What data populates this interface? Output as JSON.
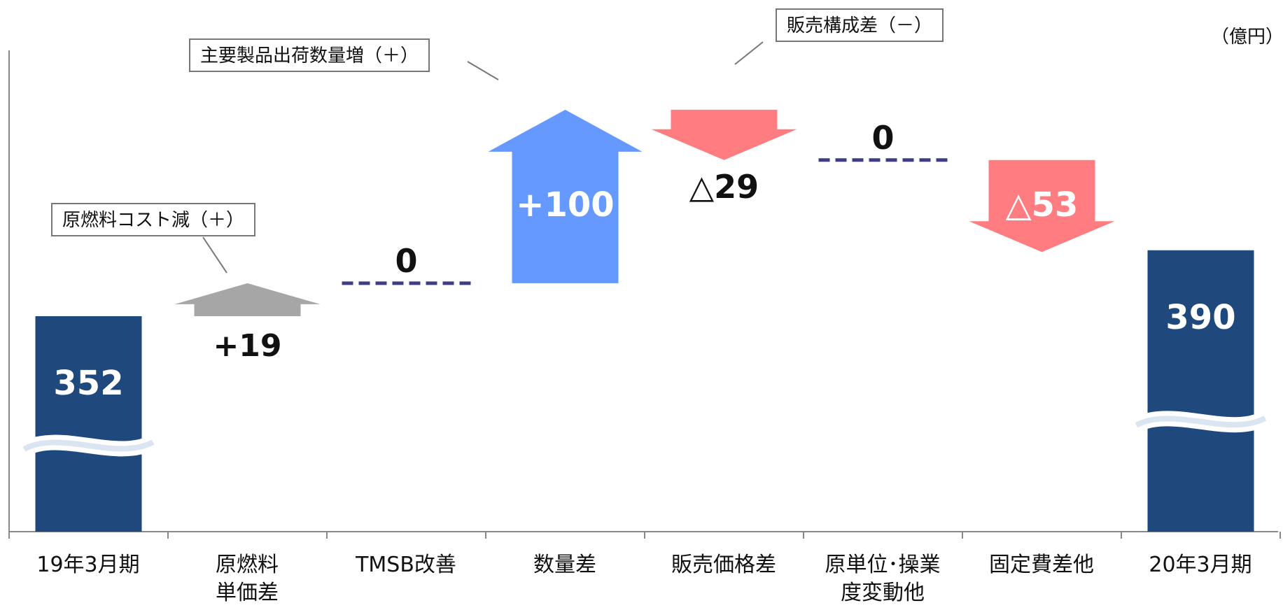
{
  "chart_data": {
    "type": "waterfall",
    "unit": "（億円）",
    "categories": [
      {
        "line1": "19年3月期",
        "line2": ""
      },
      {
        "line1": "原燃料",
        "line2": "単価差"
      },
      {
        "line1": "TMSB改善",
        "line2": ""
      },
      {
        "line1": "数量差",
        "line2": ""
      },
      {
        "line1": "販売価格差",
        "line2": ""
      },
      {
        "line1": "原単位･操業",
        "line2": "度変動他"
      },
      {
        "line1": "固定費差他",
        "line2": ""
      },
      {
        "line1": "20年3月期",
        "line2": ""
      }
    ],
    "values": [
      352,
      19,
      0,
      100,
      -29,
      0,
      -53,
      390
    ],
    "value_labels": [
      "352",
      "+19",
      "0",
      "+100",
      "△29",
      "0",
      "△53",
      "390"
    ],
    "kinds": [
      "total",
      "up",
      "flat",
      "up",
      "down",
      "flat",
      "down",
      "total"
    ],
    "axis_break": true,
    "callouts": {
      "raw_material": "原燃料コスト減（＋）",
      "shipment": "主要製品出荷数量増（＋）",
      "sales_mix": "販売構成差（－）"
    },
    "colors": {
      "total": "#1f497d",
      "up_large": "#6699ff",
      "up_small": "#a6a6a6",
      "down": "#ff7c80",
      "flat": "#3f3f7f"
    }
  }
}
